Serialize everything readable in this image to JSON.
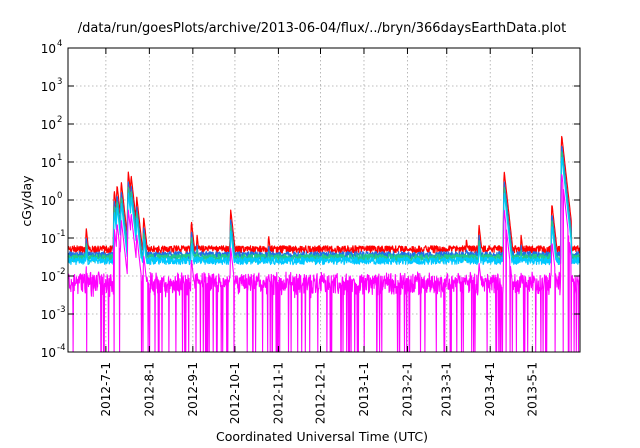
{
  "chart_data": {
    "type": "line",
    "title": "/data/run/goesPlots/archive/2013-06-04/flux/../bryn/366daysEarthData.plot",
    "xlabel": "Coordinated Universal Time (UTC)",
    "ylabel": "cGy/day",
    "yscale": "log",
    "ylim": [
      0.0001,
      10000
    ],
    "xlim": [
      "2012-06-04",
      "2013-06-04"
    ],
    "grid": true,
    "y_ticks": [
      {
        "base": "10",
        "exp": "-4",
        "value": 0.0001
      },
      {
        "base": "10",
        "exp": "-3",
        "value": 0.001
      },
      {
        "base": "10",
        "exp": "-2",
        "value": 0.01
      },
      {
        "base": "10",
        "exp": "-1",
        "value": 0.1
      },
      {
        "base": "10",
        "exp": "0",
        "value": 1
      },
      {
        "base": "10",
        "exp": "1",
        "value": 10
      },
      {
        "base": "10",
        "exp": "2",
        "value": 100
      },
      {
        "base": "10",
        "exp": "3",
        "value": 1000
      },
      {
        "base": "10",
        "exp": "4",
        "value": 10000
      }
    ],
    "x_ticks": [
      {
        "label": "2012-7-1",
        "date": "2012-07-01"
      },
      {
        "label": "2012-8-1",
        "date": "2012-08-01"
      },
      {
        "label": "2012-9-1",
        "date": "2012-09-01"
      },
      {
        "label": "2012-10-1",
        "date": "2012-10-01"
      },
      {
        "label": "2012-11-1",
        "date": "2012-11-01"
      },
      {
        "label": "2012-12-1",
        "date": "2012-12-01"
      },
      {
        "label": "2013-1-1",
        "date": "2013-01-01"
      },
      {
        "label": "2013-2-1",
        "date": "2013-02-01"
      },
      {
        "label": "2013-3-1",
        "date": "2013-03-01"
      },
      {
        "label": "2013-4-1",
        "date": "2013-04-01"
      },
      {
        "label": "2013-5-1",
        "date": "2013-05-01"
      }
    ],
    "baseline": {
      "red": 0.05,
      "blue": 0.035,
      "green": 0.025,
      "cyan": 0.03,
      "magenta": 0.006
    },
    "events": [
      {
        "date": "2012-06-17",
        "peak": 0.18
      },
      {
        "date": "2012-07-07",
        "peak": 1.8
      },
      {
        "date": "2012-07-09",
        "peak": 2.5
      },
      {
        "date": "2012-07-12",
        "peak": 3.0
      },
      {
        "date": "2012-07-17",
        "peak": 5.5
      },
      {
        "date": "2012-07-19",
        "peak": 4.5
      },
      {
        "date": "2012-07-23",
        "peak": 1.2
      },
      {
        "date": "2012-07-28",
        "peak": 0.35
      },
      {
        "date": "2012-08-31",
        "peak": 0.28
      },
      {
        "date": "2012-09-04",
        "peak": 0.12
      },
      {
        "date": "2012-09-28",
        "peak": 0.55
      },
      {
        "date": "2012-10-25",
        "peak": 0.12
      },
      {
        "date": "2013-03-15",
        "peak": 0.1
      },
      {
        "date": "2013-03-24",
        "peak": 0.22
      },
      {
        "date": "2013-04-11",
        "peak": 5.5
      },
      {
        "date": "2013-04-23",
        "peak": 0.12
      },
      {
        "date": "2013-05-15",
        "peak": 0.8
      },
      {
        "date": "2013-05-22",
        "peak": 50
      },
      {
        "date": "2013-05-24",
        "peak": 2.5
      }
    ],
    "series": [
      {
        "color": "#ff0000"
      },
      {
        "color": "#1e6fe8"
      },
      {
        "color": "#22c988"
      },
      {
        "color": "#00c8ff"
      },
      {
        "color": "#ff00ff"
      }
    ]
  }
}
